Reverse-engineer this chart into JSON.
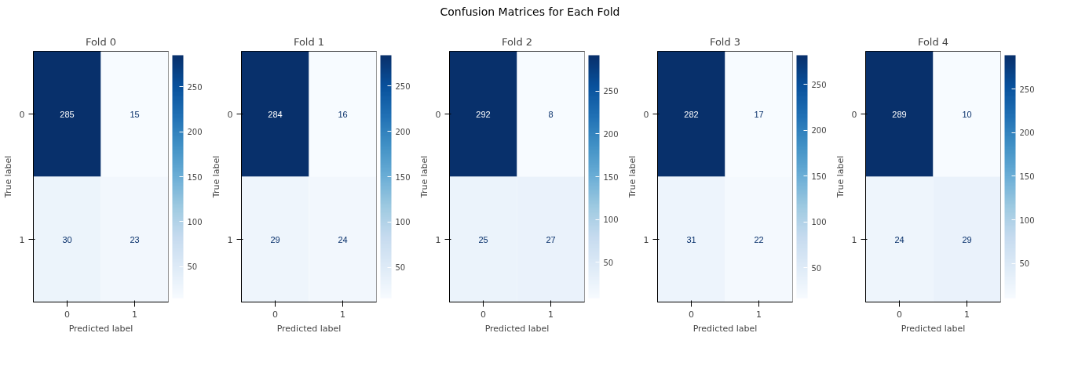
{
  "chart_data": [
    {
      "type": "other",
      "title": "Confusion Matrices for Each Fold"
    },
    {
      "type": "heatmap",
      "title": "Fold 0",
      "xlabel": "Predicted label",
      "ylabel": "True label",
      "categories": [
        "0",
        "1"
      ],
      "y_categories": [
        "0",
        "1"
      ],
      "cells": [
        [
          285,
          15
        ],
        [
          30,
          23
        ]
      ],
      "data_labels": true,
      "clim": [
        15,
        285
      ],
      "cticks": [
        50,
        100,
        150,
        200,
        250
      ]
    },
    {
      "type": "heatmap",
      "title": "Fold 1",
      "xlabel": "Predicted label",
      "ylabel": "True label",
      "categories": [
        "0",
        "1"
      ],
      "y_categories": [
        "0",
        "1"
      ],
      "cells": [
        [
          284,
          16
        ],
        [
          29,
          24
        ]
      ],
      "data_labels": true,
      "clim": [
        16,
        284
      ],
      "cticks": [
        50,
        100,
        150,
        200,
        250
      ]
    },
    {
      "type": "heatmap",
      "title": "Fold 2",
      "xlabel": "Predicted label",
      "ylabel": "True label",
      "categories": [
        "0",
        "1"
      ],
      "y_categories": [
        "0",
        "1"
      ],
      "cells": [
        [
          292,
          8
        ],
        [
          25,
          27
        ]
      ],
      "data_labels": true,
      "clim": [
        8,
        292
      ],
      "cticks": [
        50,
        100,
        150,
        200,
        250
      ]
    },
    {
      "type": "heatmap",
      "title": "Fold 3",
      "xlabel": "Predicted label",
      "ylabel": "True label",
      "categories": [
        "0",
        "1"
      ],
      "y_categories": [
        "0",
        "1"
      ],
      "cells": [
        [
          282,
          17
        ],
        [
          31,
          22
        ]
      ],
      "data_labels": true,
      "clim": [
        17,
        282
      ],
      "cticks": [
        50,
        100,
        150,
        200,
        250
      ]
    },
    {
      "type": "heatmap",
      "title": "Fold 4",
      "xlabel": "Predicted label",
      "ylabel": "True label",
      "categories": [
        "0",
        "1"
      ],
      "y_categories": [
        "0",
        "1"
      ],
      "cells": [
        [
          289,
          10
        ],
        [
          24,
          29
        ]
      ],
      "data_labels": true,
      "clim": [
        10,
        289
      ],
      "cticks": [
        50,
        100,
        150,
        200,
        250
      ]
    }
  ]
}
